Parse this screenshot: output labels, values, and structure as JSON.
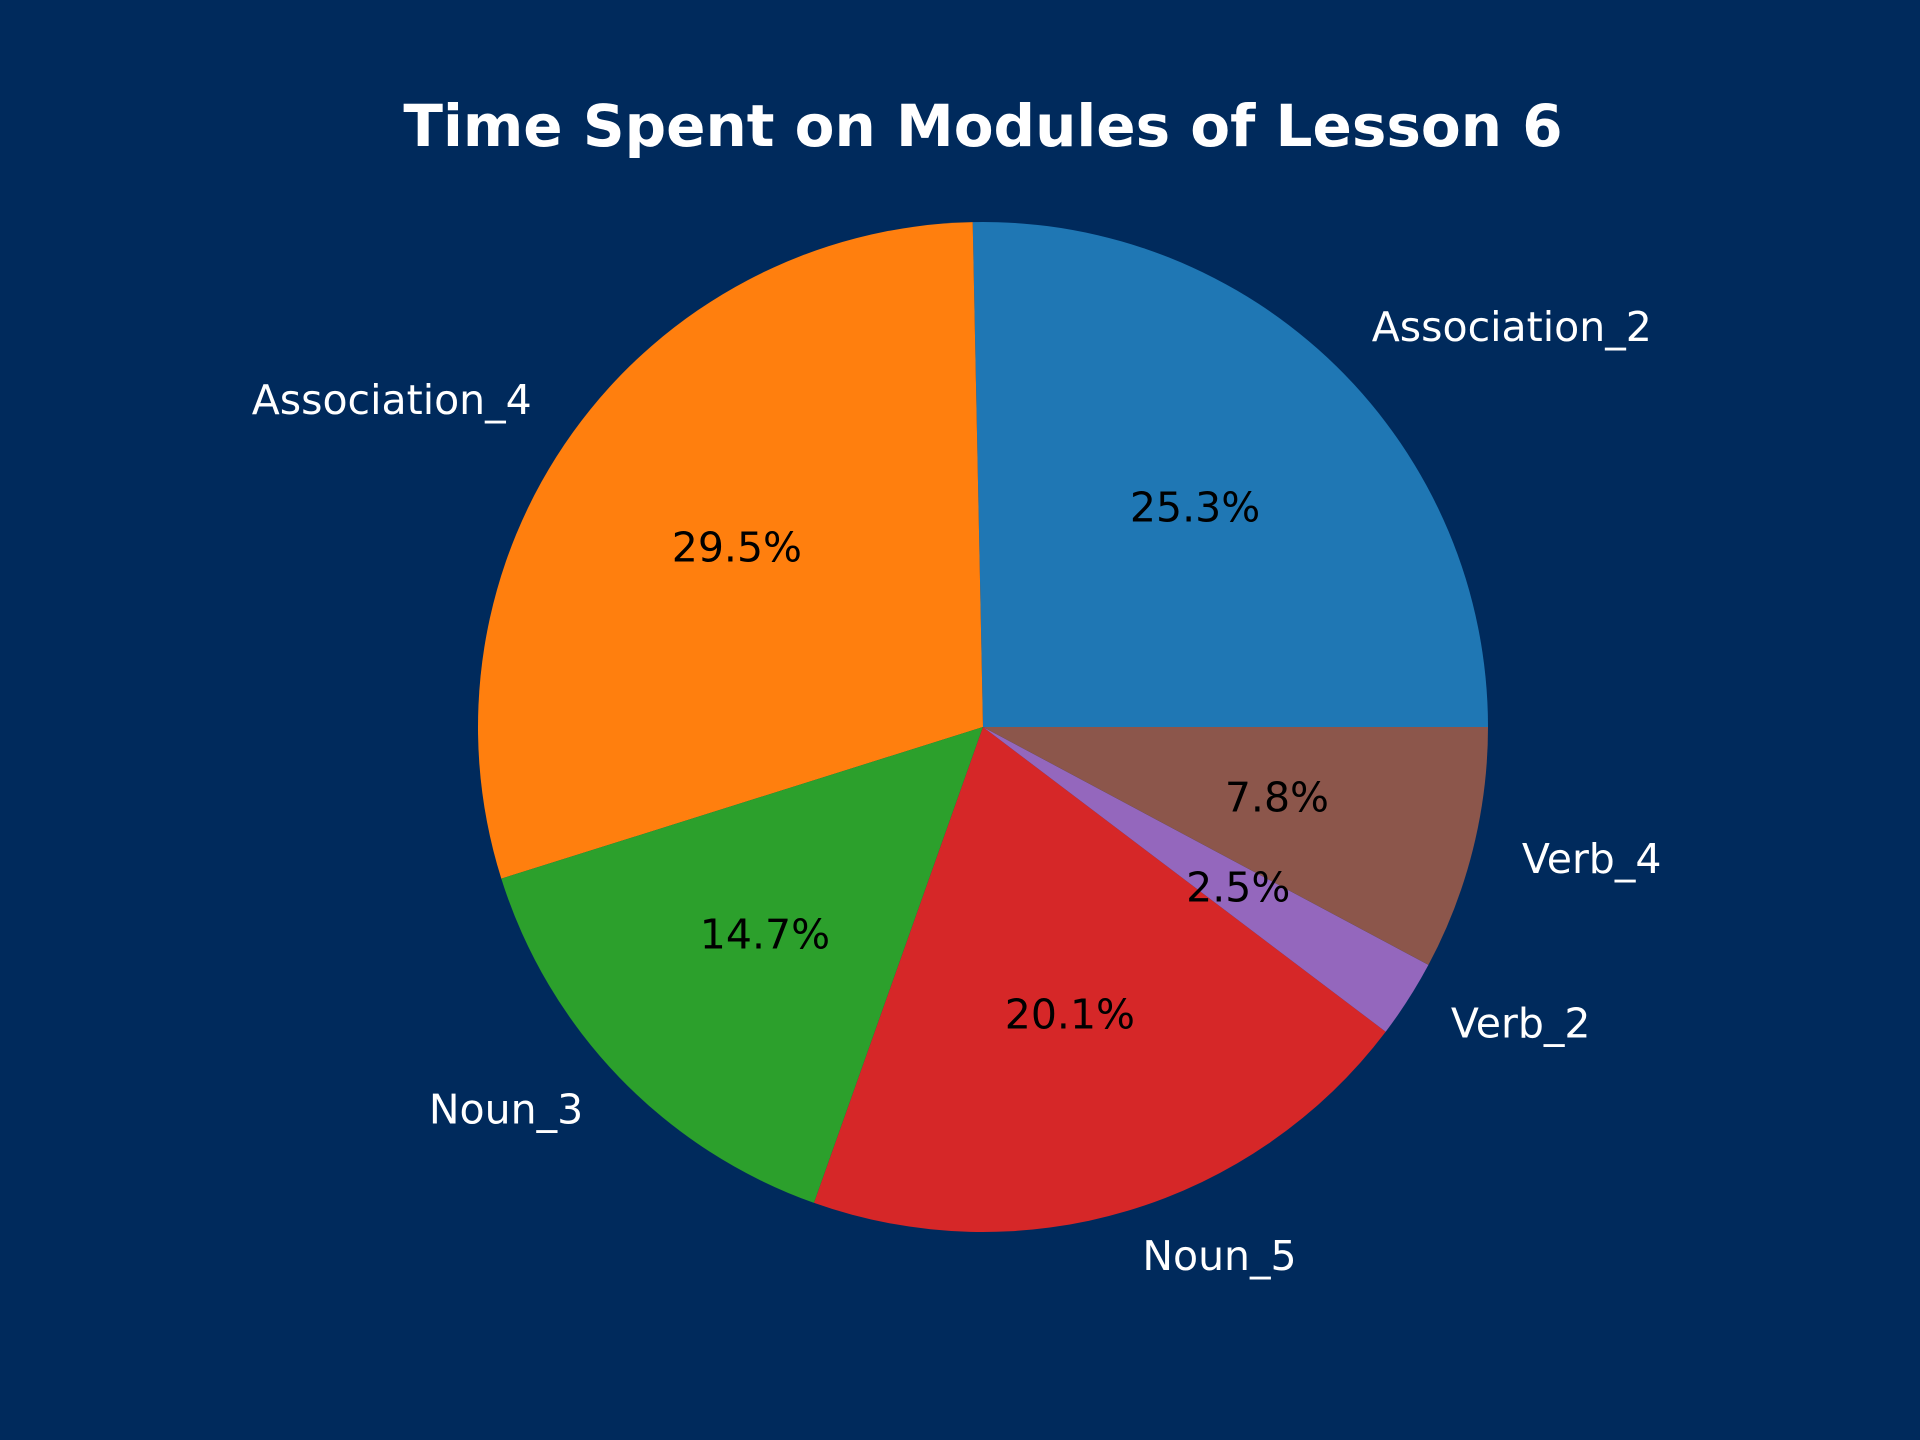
{
  "background_color": "#002a5c",
  "chart_data": {
    "type": "pie",
    "title": "Time Spent on Modules of Lesson 6",
    "start_angle_deg": 0,
    "direction": "counterclockwise",
    "slices": [
      {
        "label": "Association_2",
        "value": 25.3,
        "pct_text": "25.3%",
        "color": "#1f77b4"
      },
      {
        "label": "Association_4",
        "value": 29.5,
        "pct_text": "29.5%",
        "color": "#ff7f0e"
      },
      {
        "label": "Noun_3",
        "value": 14.7,
        "pct_text": "14.7%",
        "color": "#2ca02c"
      },
      {
        "label": "Noun_5",
        "value": 20.1,
        "pct_text": "20.1%",
        "color": "#d62728"
      },
      {
        "label": "Verb_2",
        "value": 2.5,
        "pct_text": "2.5%",
        "color": "#9467bd"
      },
      {
        "label": "Verb_4",
        "value": 7.8,
        "pct_text": "7.8%",
        "color": "#8c564b"
      }
    ],
    "legend": false
  }
}
